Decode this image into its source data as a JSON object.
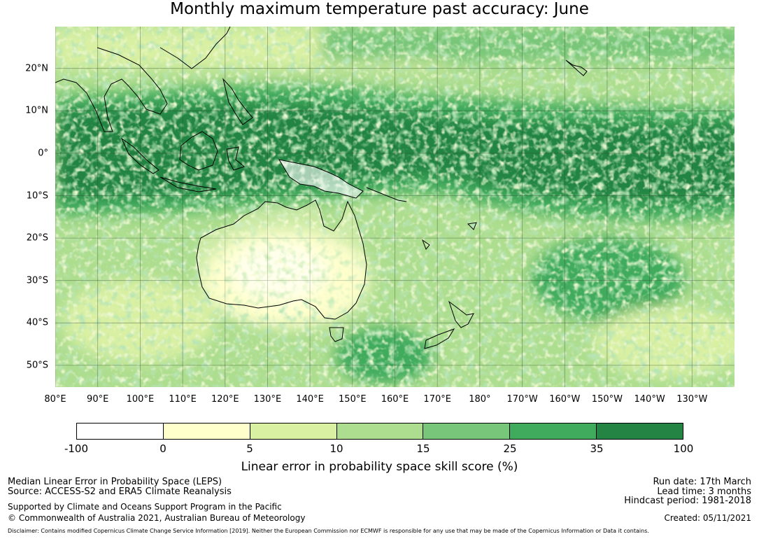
{
  "title": "Monthly maximum temperature past accuracy: June",
  "map": {
    "lat_labels": [
      "20°N",
      "10°N",
      "0°",
      "10°S",
      "20°S",
      "30°S",
      "40°S",
      "50°S"
    ],
    "lon_labels": [
      "80°E",
      "90°E",
      "100°E",
      "110°E",
      "120°E",
      "130°E",
      "140°E",
      "150°E",
      "160°E",
      "170°E",
      "180°",
      "170°W",
      "160°W",
      "150°W",
      "140°W",
      "130°W"
    ],
    "lon_range": [
      80,
      240
    ],
    "lat_range": [
      -55.5,
      29.5
    ]
  },
  "colorbar": {
    "tick_labels": [
      "-100",
      "0",
      "5",
      "10",
      "15",
      "25",
      "35",
      "100"
    ],
    "colors": [
      "#ffffff",
      "#ffffcc",
      "#d9f0a3",
      "#addd8e",
      "#78c679",
      "#41ab5d",
      "#238443"
    ],
    "label": "Linear error in probability space skill score (%)"
  },
  "footer": {
    "left_line1": "Median Linear Error in Probability Space (LEPS)",
    "left_line2": "Source: ACCESS-S2 and ERA5 Climate Reanalysis",
    "left_line3": "Supported by Climate and Oceans Support Program in the Pacific",
    "left_line4": "© Commonwealth of Australia 2021, Australian Bureau of Meteorology",
    "run_date": "Run date: 17th March",
    "lead_time": "Lead time: 3 months",
    "hindcast": "Hindcast period: 1981-2018",
    "created": "Created: 05/11/2021",
    "disclaimer": "Disclaimer: Contains modified Copernicus Climate Change Service Information [2019]. Neither the European Commission nor ECMWF is responsible for any use that may be made of the Copernicus Information or Data it contains."
  }
}
